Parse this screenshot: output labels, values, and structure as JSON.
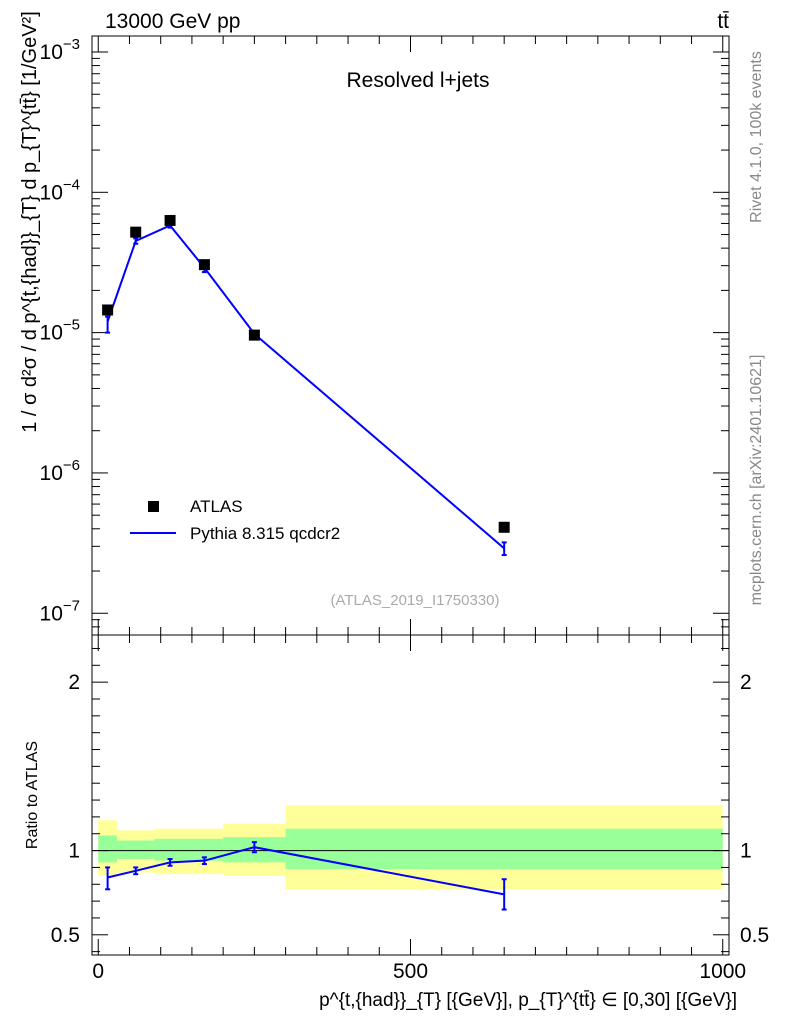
{
  "header": {
    "left": "13000 GeV pp",
    "right": "tt̄",
    "plot_title": "Resolved l+jets",
    "analysis_id": "(ATLAS_2019_I1750330)",
    "side_top": "Rivet 4.1.0,  100k events",
    "side_bottom": "mcplots.cern.ch [arXiv:2401.10621]"
  },
  "colors": {
    "data": "#000000",
    "mc": "#0000ff",
    "band_outer": "#ffff99",
    "band_inner": "#99ff99"
  },
  "chart_data": [
    {
      "type": "scatter",
      "name": "main",
      "yscale": "log",
      "xlim": [
        -10,
        1010
      ],
      "ylim": [
        7e-08,
        0.0013
      ],
      "ylabel": "1 / σ d²σ / d p^{t,{had}}_{T} d p_{T}^{tt̄} [1/GeV²]",
      "yticks": [
        1e-07,
        1e-06,
        1e-05,
        0.0001,
        0.001
      ],
      "ytick_labels": [
        [
          "10",
          "−7"
        ],
        [
          "10",
          "−6"
        ],
        [
          "10",
          "−5"
        ],
        [
          "10",
          "−4"
        ],
        [
          "10",
          "−3"
        ]
      ],
      "legend_position": "lower-left",
      "legend": [
        "ATLAS",
        "Pythia 8.315 qcdcr2"
      ],
      "series": [
        {
          "name": "ATLAS",
          "x": [
            15,
            60,
            115,
            170,
            250,
            650
          ],
          "y": [
            1.45e-05,
            5.2e-05,
            6.3e-05,
            3.05e-05,
            9.6e-06,
            4.1e-07
          ]
        },
        {
          "name": "Pythia 8.315 qcdcr2",
          "x": [
            15,
            60,
            115,
            170,
            250,
            650
          ],
          "y": [
            1.2e-05,
            4.5e-05,
            5.8e-05,
            2.9e-05,
            9.8e-06,
            2.9e-07
          ],
          "yerr_low": [
            1e-05,
            4.3e-05,
            5.6e-05,
            2.7e-05,
            9.4e-06,
            2.6e-07
          ],
          "yerr_high": [
            1.3e-05,
            4.7e-05,
            6e-05,
            3.1e-05,
            1.02e-05,
            3.2e-07
          ]
        }
      ]
    },
    {
      "type": "line",
      "name": "ratio",
      "xlim": [
        -10,
        1010
      ],
      "ylim": [
        0.38,
        2.28
      ],
      "ylabel": "Ratio to ATLAS",
      "xlabel": "p^{t,{had}}_{T} [{GeV}], p_{T}^{tt̄} ∈ [0,30] [{GeV}]",
      "xticks": [
        0,
        500,
        1000
      ],
      "xtick_labels": [
        "0",
        "500",
        "1000"
      ],
      "yticks": [
        0.5,
        1,
        2
      ],
      "ytick_labels": [
        "0.5",
        "1",
        "2"
      ],
      "band_edges": [
        0,
        30,
        90,
        200,
        300,
        1000
      ],
      "band_outer": [
        [
          0.85,
          1.18
        ],
        [
          0.87,
          1.12
        ],
        [
          0.86,
          1.13
        ],
        [
          0.85,
          1.16
        ],
        [
          0.77,
          1.27
        ]
      ],
      "band_inner": [
        [
          0.93,
          1.09
        ],
        [
          0.95,
          1.06
        ],
        [
          0.94,
          1.07
        ],
        [
          0.93,
          1.08
        ],
        [
          0.89,
          1.13
        ]
      ],
      "series": [
        {
          "name": "Pythia 8.315 qcdcr2",
          "x": [
            15,
            60,
            115,
            170,
            250,
            650
          ],
          "y": [
            0.84,
            0.88,
            0.93,
            0.94,
            1.02,
            0.74
          ],
          "yerr_low": [
            0.77,
            0.86,
            0.91,
            0.92,
            0.99,
            0.65
          ],
          "yerr_high": [
            0.9,
            0.9,
            0.95,
            0.96,
            1.05,
            0.83
          ]
        }
      ]
    }
  ]
}
